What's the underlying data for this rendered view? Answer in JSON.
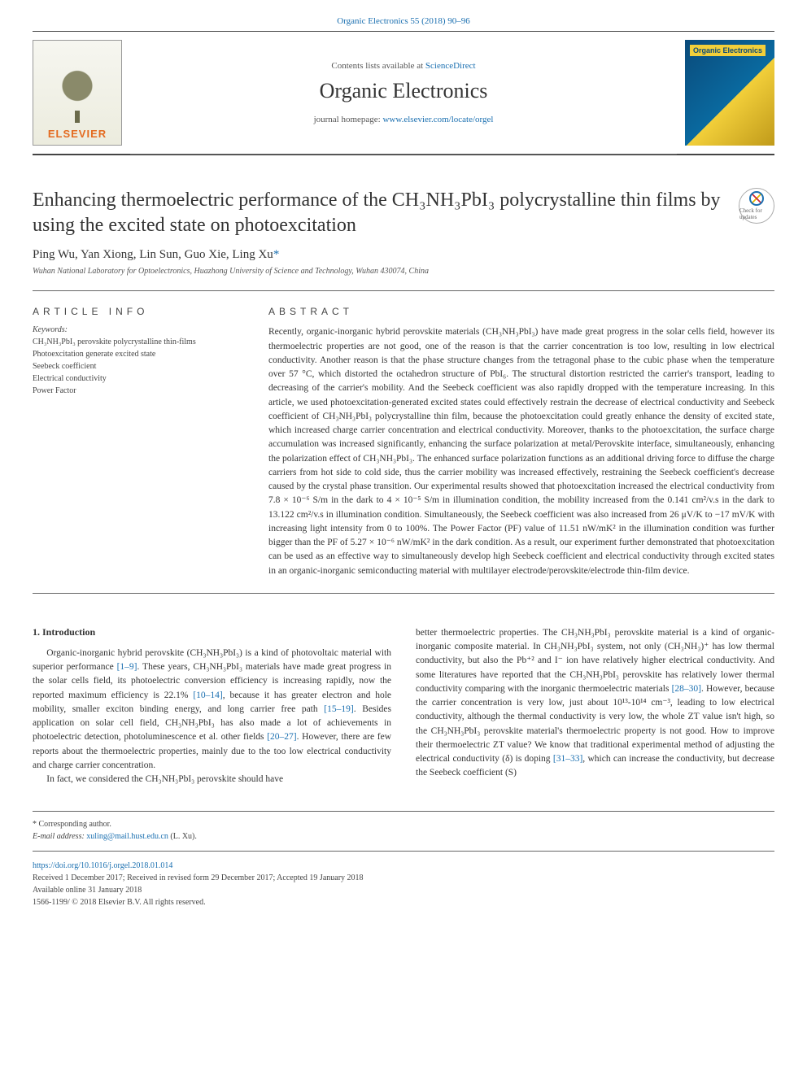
{
  "top_link": "Organic Electronics 55 (2018) 90–96",
  "header": {
    "contents_prefix": "Contents lists available at ",
    "contents_link": "ScienceDirect",
    "journal": "Organic Electronics",
    "homepage_prefix": "journal homepage: ",
    "homepage_url": "www.elsevier.com/locate/orgel",
    "publisher": "ELSEVIER",
    "cover_label": "Organic Electronics"
  },
  "article": {
    "title": "Enhancing thermoelectric performance of the CH₃NH₃PbI₃ polycrystalline thin films by using the excited state on photoexcitation",
    "crossmark": "Check for updates",
    "authors": "Ping Wu, Yan Xiong, Lin Sun, Guo Xie, Ling Xu",
    "affiliation": "Wuhan National Laboratory for Optoelectronics, Huazhong University of Science and Technology, Wuhan 430074, China"
  },
  "info": {
    "head": "ARTICLE INFO",
    "kw_label": "Keywords:",
    "keywords": "CH₃NH₃PbI₃ perovskite polycrystalline thin-films\nPhotoexcitation generate excited state\nSeebeck coefficient\nElectrical conductivity\nPower Factor"
  },
  "abstract": {
    "head": "ABSTRACT",
    "text": "Recently, organic-inorganic hybrid perovskite materials (CH₃NH₃PbI₃) have made great progress in the solar cells field, however its thermoelectric properties are not good, one of the reason is that the carrier concentration is too low, resulting in low electrical conductivity. Another reason is that the phase structure changes from the tetragonal phase to the cubic phase when the temperature over 57 °C, which distorted the octahedron structure of PbI₆. The structural distortion restricted the carrier's transport, leading to decreasing of the carrier's mobility. And the Seebeck coefficient was also rapidly dropped with the temperature increasing. In this article, we used photoexcitation-generated excited states could effectively restrain the decrease of electrical conductivity and Seebeck coefficient of CH₃NH₃PbI₃ polycrystalline thin film, because the photoexcitation could greatly enhance the density of excited state, which increased charge carrier concentration and electrical conductivity. Moreover, thanks to the photoexcitation, the surface charge accumulation was increased significantly, enhancing the surface polarization at metal/Perovskite interface, simultaneously, enhancing the polarization effect of CH₃NH₃PbI₃. The enhanced surface polarization functions as an additional driving force to diffuse the charge carriers from hot side to cold side, thus the carrier mobility was increased effectively, restraining the Seebeck coefficient's decrease caused by the crystal phase transition. Our experimental results showed that photoexcitation increased the electrical conductivity from 7.8 × 10⁻⁶ S/m in the dark to 4 × 10⁻⁵ S/m in illumination condition, the mobility increased from the 0.141 cm²/v.s in the dark to 13.122 cm²/v.s in illumination condition. Simultaneously, the Seebeck coefficient was also increased from 26 μV/K to −17 mV/K with increasing light intensity from 0 to 100%. The Power Factor (PF) value of 11.51 nW/mK² in the illumination condition was further bigger than the PF of 5.27 × 10⁻⁶ nW/mK² in the dark condition. As a result, our experiment further demonstrated that photoexcitation can be used as an effective way to simultaneously develop high Seebeck coefficient and electrical conductivity through excited states in an organic-inorganic semiconducting material with multilayer electrode/perovskite/electrode thin-film device."
  },
  "body": {
    "sec_head": "1. Introduction",
    "col1_p1a": "Organic-inorganic hybrid perovskite (CH₃NH₃PbI₃) is a kind of photovoltaic material with superior performance ",
    "col1_ref1": "[1–9]",
    "col1_p1b": ". These years, CH₃NH₃PbI₃ materials have made great progress in the solar cells field, its photoelectric conversion efficiency is increasing rapidly, now the reported maximum efficiency is 22.1% ",
    "col1_ref2": "[10–14]",
    "col1_p1c": ", because it has greater electron and hole mobility, smaller exciton binding energy, and long carrier free path ",
    "col1_ref3": "[15–19]",
    "col1_p1d": ". Besides application on solar cell field, CH₃NH₃PbI₃ has also made a lot of achievements in photoelectric detection, photoluminescence et al. other fields ",
    "col1_ref4": "[20–27]",
    "col1_p1e": ". However, there are few reports about the thermoelectric properties, mainly due to the too low electrical conductivity and charge carrier concentration.",
    "col1_p2": "In fact, we considered the CH₃NH₃PbI₃ perovskite should have",
    "col2_p1a": "better thermoelectric properties. The CH₃NH₃PbI₃ perovskite material is a kind of organic-inorganic composite material. In CH₃NH₃PbI₃ system, not only (CH₃NH₃)⁺ has low thermal conductivity, but also the Pb⁺² and I⁻ ion have relatively higher electrical conductivity. And some literatures have reported that the CH₃NH₃PbI₃ perovskite has relatively lower thermal conductivity comparing with the inorganic thermoelectric materials ",
    "col2_ref1": "[28–30]",
    "col2_p1b": ". However, because the carrier concentration is very low, just about 10¹³-10¹⁴ cm⁻³, leading to low electrical conductivity, although the thermal conductivity is very low, the whole ZT value isn't high, so the CH₃NH₃PbI₃ perovskite material's thermoelectric property is not good. How to improve their thermoelectric ZT value? We know that traditional experimental method of adjusting the electrical conductivity (δ) is doping ",
    "col2_ref2": "[31–33]",
    "col2_p1c": ", which can increase the conductivity, but decrease the Seebeck coefficient (S)"
  },
  "footer": {
    "corr": "* Corresponding author.",
    "email_label": "E-mail address: ",
    "email": "xuling@mail.hust.edu.cn",
    "email_suffix": " (L. Xu).",
    "doi": "https://doi.org/10.1016/j.orgel.2018.01.014",
    "received": "Received 1 December 2017; Received in revised form 29 December 2017; Accepted 19 January 2018",
    "online": "Available online 31 January 2018",
    "copyright": "1566-1199/ © 2018 Elsevier B.V. All rights reserved."
  },
  "colors": {
    "link": "#1a6fb0",
    "text": "#333333",
    "rule": "#666666",
    "orange": "#e46a1f"
  }
}
